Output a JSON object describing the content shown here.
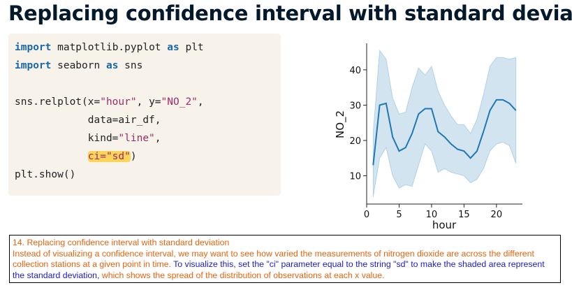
{
  "title": "Replacing confidence interval with standard deviation",
  "code": [
    [
      {
        "text": "import",
        "kind": "keyword"
      },
      {
        "text": " matplotlib.pyplot ",
        "kind": "plain"
      },
      {
        "text": "as",
        "kind": "keyword"
      },
      {
        "text": " plt",
        "kind": "plain"
      }
    ],
    [
      {
        "text": "import",
        "kind": "keyword"
      },
      {
        "text": " seaborn ",
        "kind": "plain"
      },
      {
        "text": "as",
        "kind": "keyword"
      },
      {
        "text": " sns",
        "kind": "plain"
      }
    ],
    [],
    [
      {
        "text": "sns.relplot(x=",
        "kind": "plain"
      },
      {
        "text": "\"hour\"",
        "kind": "string"
      },
      {
        "text": ", y=",
        "kind": "plain"
      },
      {
        "text": "\"NO_2\"",
        "kind": "string"
      },
      {
        "text": ",",
        "kind": "plain"
      }
    ],
    [
      {
        "text": "            data=air_df,",
        "kind": "plain"
      }
    ],
    [
      {
        "text": "            kind=",
        "kind": "plain"
      },
      {
        "text": "\"line\"",
        "kind": "string"
      },
      {
        "text": ",",
        "kind": "plain"
      }
    ],
    [
      {
        "text": "            ",
        "kind": "plain"
      },
      {
        "text": "ci=\"sd\"",
        "kind": "highlight"
      },
      {
        "text": ")",
        "kind": "plain"
      }
    ],
    [
      {
        "text": "plt.show()",
        "kind": "plain"
      }
    ]
  ],
  "chart_data": {
    "type": "line",
    "x_label": "hour",
    "y_label": "NO_2",
    "x": [
      1,
      2,
      3,
      4,
      5,
      6,
      7,
      8,
      9,
      10,
      11,
      12,
      13,
      14,
      15,
      16,
      17,
      18,
      19,
      20,
      21,
      22,
      23
    ],
    "series": [
      {
        "color": "#1f77b4",
        "values": [
          13,
          30,
          30.5,
          21,
          17,
          18,
          22,
          27.5,
          29,
          29,
          22.5,
          21,
          19,
          17.5,
          17,
          15,
          17,
          22.5,
          28.5,
          31.5,
          31.5,
          30.5,
          28.5
        ],
        "upper": [
          22,
          45.5,
          43,
          32,
          27.5,
          28,
          35,
          40.5,
          38.5,
          41,
          34,
          30,
          27,
          24.5,
          24.5,
          22,
          26,
          33,
          41,
          43.5,
          43.5,
          43,
          43.5
        ],
        "lower": [
          4,
          15,
          18,
          10,
          6.5,
          7.5,
          7,
          13,
          19,
          17,
          11,
          12,
          11,
          10.5,
          10,
          8,
          9,
          12,
          17,
          19,
          19.5,
          18.5,
          13.5
        ]
      }
    ],
    "xlim": [
      0,
      24
    ],
    "ylim": [
      2,
      47.5
    ],
    "xticks": [
      0,
      5,
      10,
      15,
      20
    ],
    "yticks": [
      10,
      20,
      30,
      40
    ]
  },
  "caption": {
    "heading": "14. Replacing confidence interval with standard deviation",
    "segments": [
      {
        "text": "Instead of visualizing a confidence interval, we may want to see how varied the measurements of nitrogen dioxide are across the different collection stations at a given point in time. ",
        "color": "#e8620c"
      },
      {
        "text": "To visualize this, set the \"ci\" parameter equal to the string \"sd\" to make the shaded area represent the standard deviation, ",
        "color": "#1a1acc"
      },
      {
        "text": "which shows the spread of the distribution of observations at each x value.",
        "color": "#e8620c"
      }
    ]
  }
}
